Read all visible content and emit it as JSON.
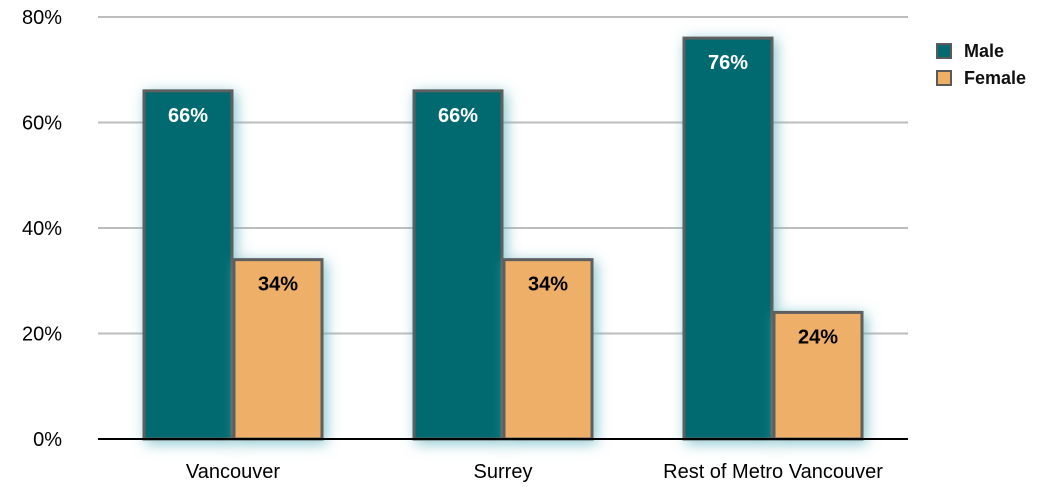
{
  "chart_data": {
    "type": "bar",
    "categories": [
      "Vancouver",
      "Surrey",
      "Rest of Metro Vancouver"
    ],
    "series": [
      {
        "name": "Male",
        "values": [
          66,
          66,
          76
        ],
        "color": "#036b70"
      },
      {
        "name": "Female",
        "values": [
          34,
          34,
          24
        ],
        "color": "#eeaf67"
      }
    ],
    "data_labels": [
      [
        "66%",
        "66%",
        "76%"
      ],
      [
        "34%",
        "34%",
        "24%"
      ]
    ],
    "y_ticks": [
      0,
      20,
      40,
      60,
      80
    ],
    "y_tick_labels": [
      "0%",
      "20%",
      "40%",
      "60%",
      "80%"
    ],
    "ylim": [
      0,
      80
    ],
    "title": "",
    "xlabel": "",
    "ylabel": "",
    "grid": true,
    "legend_position": "top-right"
  }
}
